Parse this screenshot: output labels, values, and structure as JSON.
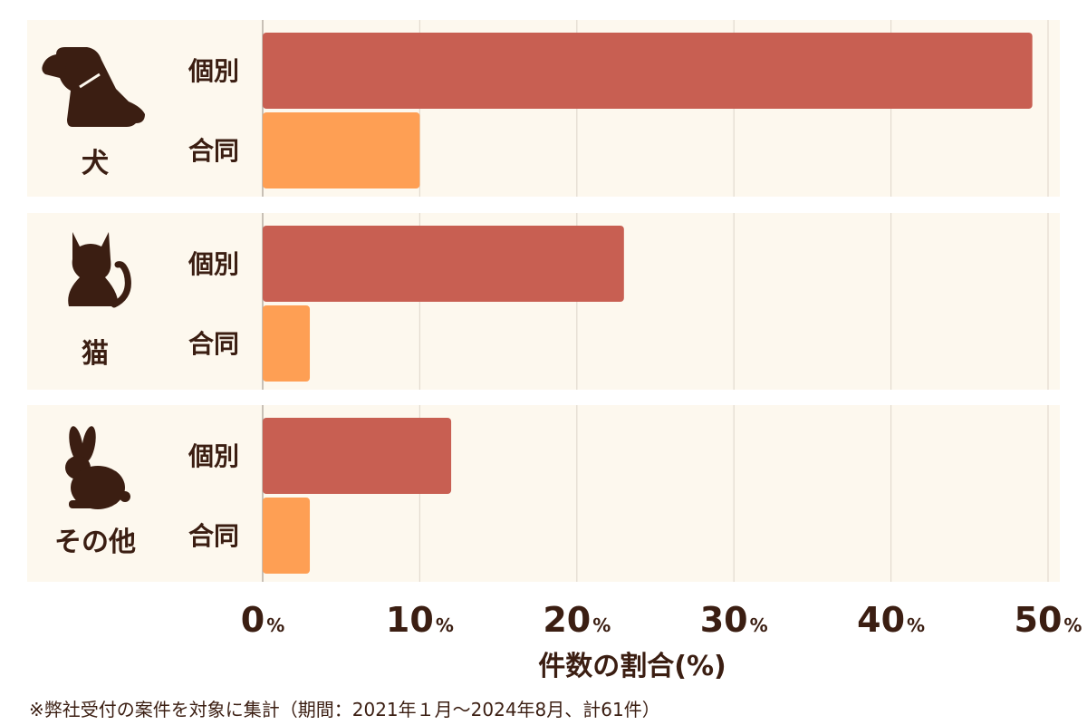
{
  "chart_data": {
    "type": "bar",
    "orientation": "horizontal",
    "groups": [
      {
        "name": "犬",
        "icon": "dog-icon",
        "bars": [
          {
            "label": "個別",
            "value": 49
          },
          {
            "label": "合同",
            "value": 10
          }
        ]
      },
      {
        "name": "猫",
        "icon": "cat-icon",
        "bars": [
          {
            "label": "個別",
            "value": 23
          },
          {
            "label": "合同",
            "value": 3
          }
        ]
      },
      {
        "name": "その他",
        "icon": "rabbit-icon",
        "bars": [
          {
            "label": "個別",
            "value": 12
          },
          {
            "label": "合同",
            "value": 3
          }
        ]
      }
    ],
    "xlim": [
      0,
      50
    ],
    "ticks": [
      0,
      10,
      20,
      30,
      40,
      50
    ],
    "tick_unit": "%",
    "xlabel": "件数の割合(%)",
    "grid": true,
    "colors": {
      "個別": "#c85f52",
      "合同": "#fe9f54",
      "panel": "#fdf8ee",
      "text": "#3b1e12"
    }
  },
  "footnote": "※弊社受付の案件を対象に集計（期間：2021年１月〜2024年8月、計61件）"
}
